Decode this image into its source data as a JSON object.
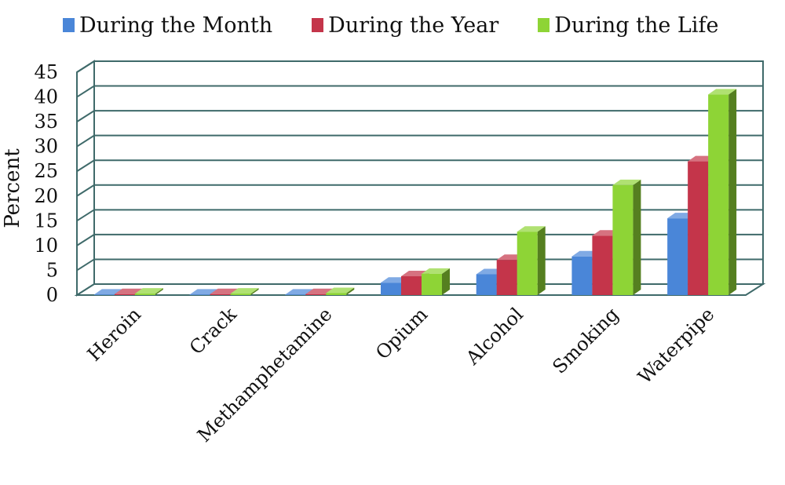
{
  "chart_data": {
    "type": "bar",
    "title": "",
    "xlabel": "",
    "ylabel": "Percent",
    "ylim": [
      0,
      45
    ],
    "yticks": [
      0,
      5,
      10,
      15,
      20,
      25,
      30,
      35,
      40,
      45
    ],
    "grid": true,
    "legend_position": "top",
    "categories": [
      "Heroin",
      "Crack",
      "Methamphetamine",
      "Opium",
      "Alcohol",
      "Smoking",
      "Waterpipe"
    ],
    "series": [
      {
        "name": "During the Month",
        "color": "#4a86d8",
        "values": [
          0.1,
          0.1,
          0.1,
          2.5,
          4.2,
          7.8,
          15.5
        ]
      },
      {
        "name": "During the Year",
        "color": "#c4354a",
        "values": [
          0.2,
          0.2,
          0.2,
          3.8,
          7.1,
          12.0,
          27.0
        ]
      },
      {
        "name": "During the Life",
        "color": "#8ed436",
        "values": [
          0.3,
          0.3,
          0.4,
          4.3,
          12.8,
          22.2,
          40.5
        ]
      }
    ]
  }
}
